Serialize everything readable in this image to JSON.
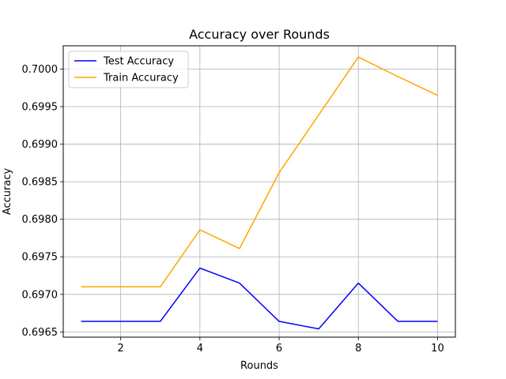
{
  "chart_data": {
    "type": "line",
    "title": "Accuracy over Rounds",
    "xlabel": "Rounds",
    "ylabel": "Accuracy",
    "x": [
      1,
      2,
      3,
      4,
      5,
      6,
      7,
      8,
      9,
      10
    ],
    "xlim": [
      0.55,
      10.45
    ],
    "ylim": [
      0.69643,
      0.70031
    ],
    "xticks": [
      2,
      4,
      6,
      8,
      10
    ],
    "xtick_labels": [
      "2",
      "4",
      "6",
      "8",
      "10"
    ],
    "yticks": [
      0.6965,
      0.697,
      0.6975,
      0.698,
      0.6985,
      0.699,
      0.6995,
      0.7
    ],
    "ytick_labels": [
      "0.6965",
      "0.6970",
      "0.6975",
      "0.6980",
      "0.6985",
      "0.6990",
      "0.6995",
      "0.7000"
    ],
    "grid": true,
    "legend_position": "top-left",
    "series": [
      {
        "name": "Test Accuracy",
        "color": "#0000ff",
        "values": [
          0.69664,
          0.69664,
          0.69664,
          0.69735,
          0.69715,
          0.69664,
          0.69654,
          0.69715,
          0.69664,
          0.69664
        ]
      },
      {
        "name": "Train Accuracy",
        "color": "#ffa500",
        "values": [
          0.6971,
          0.6971,
          0.6971,
          0.69786,
          0.69761,
          0.69862,
          0.69939,
          0.70016,
          0.6999,
          0.69965
        ]
      }
    ]
  }
}
